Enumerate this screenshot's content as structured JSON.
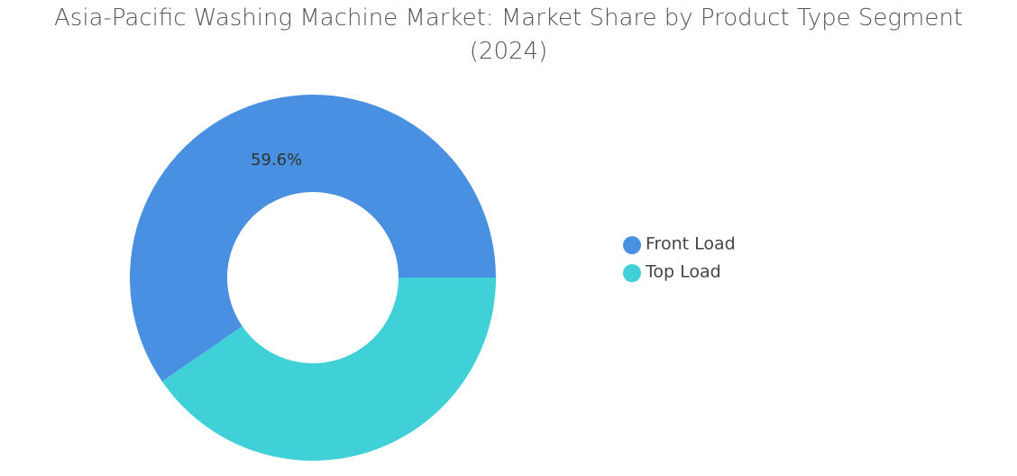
{
  "chart_data": {
    "type": "donut",
    "title": "Asia-Pacific Washing Machine Market: Market Share by Product Type Segment (2024)",
    "categories": [
      "Front Load",
      "Top Load"
    ],
    "values": [
      59.6,
      40.4
    ],
    "value_labels": [
      "59.6%",
      null
    ],
    "colors": [
      "#4a90e2",
      "#40d0d8"
    ],
    "legend": "right"
  }
}
